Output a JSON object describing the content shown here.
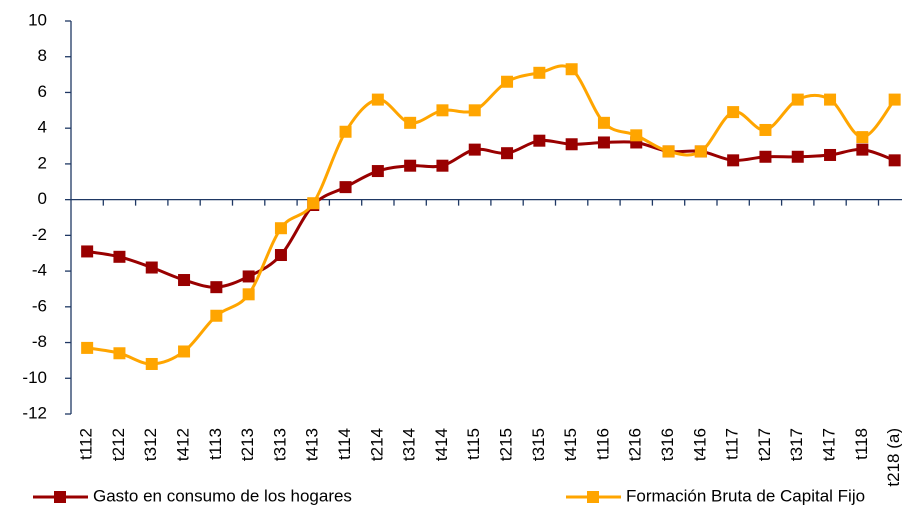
{
  "chart_data": {
    "type": "line",
    "categories": [
      "t112",
      "t212",
      "t312",
      "t412",
      "t113",
      "t213",
      "t313",
      "t413",
      "t114",
      "t214",
      "t314",
      "t414",
      "t115",
      "t215",
      "t315",
      "t415",
      "t116",
      "t216",
      "t316",
      "t416",
      "t117",
      "t217",
      "t317",
      "t417",
      "t118",
      "t218 (a)"
    ],
    "series": [
      {
        "name": "Gasto en consumo de los hogares",
        "color": "#990000",
        "values": [
          -2.9,
          -3.2,
          -3.8,
          -4.5,
          -4.9,
          -4.3,
          -3.1,
          -0.3,
          0.7,
          1.6,
          1.9,
          1.9,
          2.8,
          2.6,
          3.3,
          3.1,
          3.2,
          3.2,
          2.7,
          2.7,
          2.2,
          2.4,
          2.4,
          2.5,
          2.8,
          2.2
        ]
      },
      {
        "name": "Formación Bruta de Capital Fijo",
        "color": "#FFA500",
        "values": [
          -8.3,
          -8.6,
          -9.2,
          -8.5,
          -6.5,
          -5.3,
          -1.6,
          -0.2,
          3.8,
          5.6,
          4.3,
          5.0,
          5.0,
          6.6,
          7.1,
          7.3,
          4.3,
          3.6,
          2.7,
          2.7,
          4.9,
          3.9,
          5.6,
          5.6,
          3.5,
          5.6
        ]
      }
    ],
    "ylim": [
      -12,
      10
    ],
    "yticks": [
      -12,
      -10,
      -8,
      -6,
      -4,
      -2,
      0,
      2,
      4,
      6,
      8,
      10
    ],
    "legend": "bottom",
    "grid": false
  }
}
